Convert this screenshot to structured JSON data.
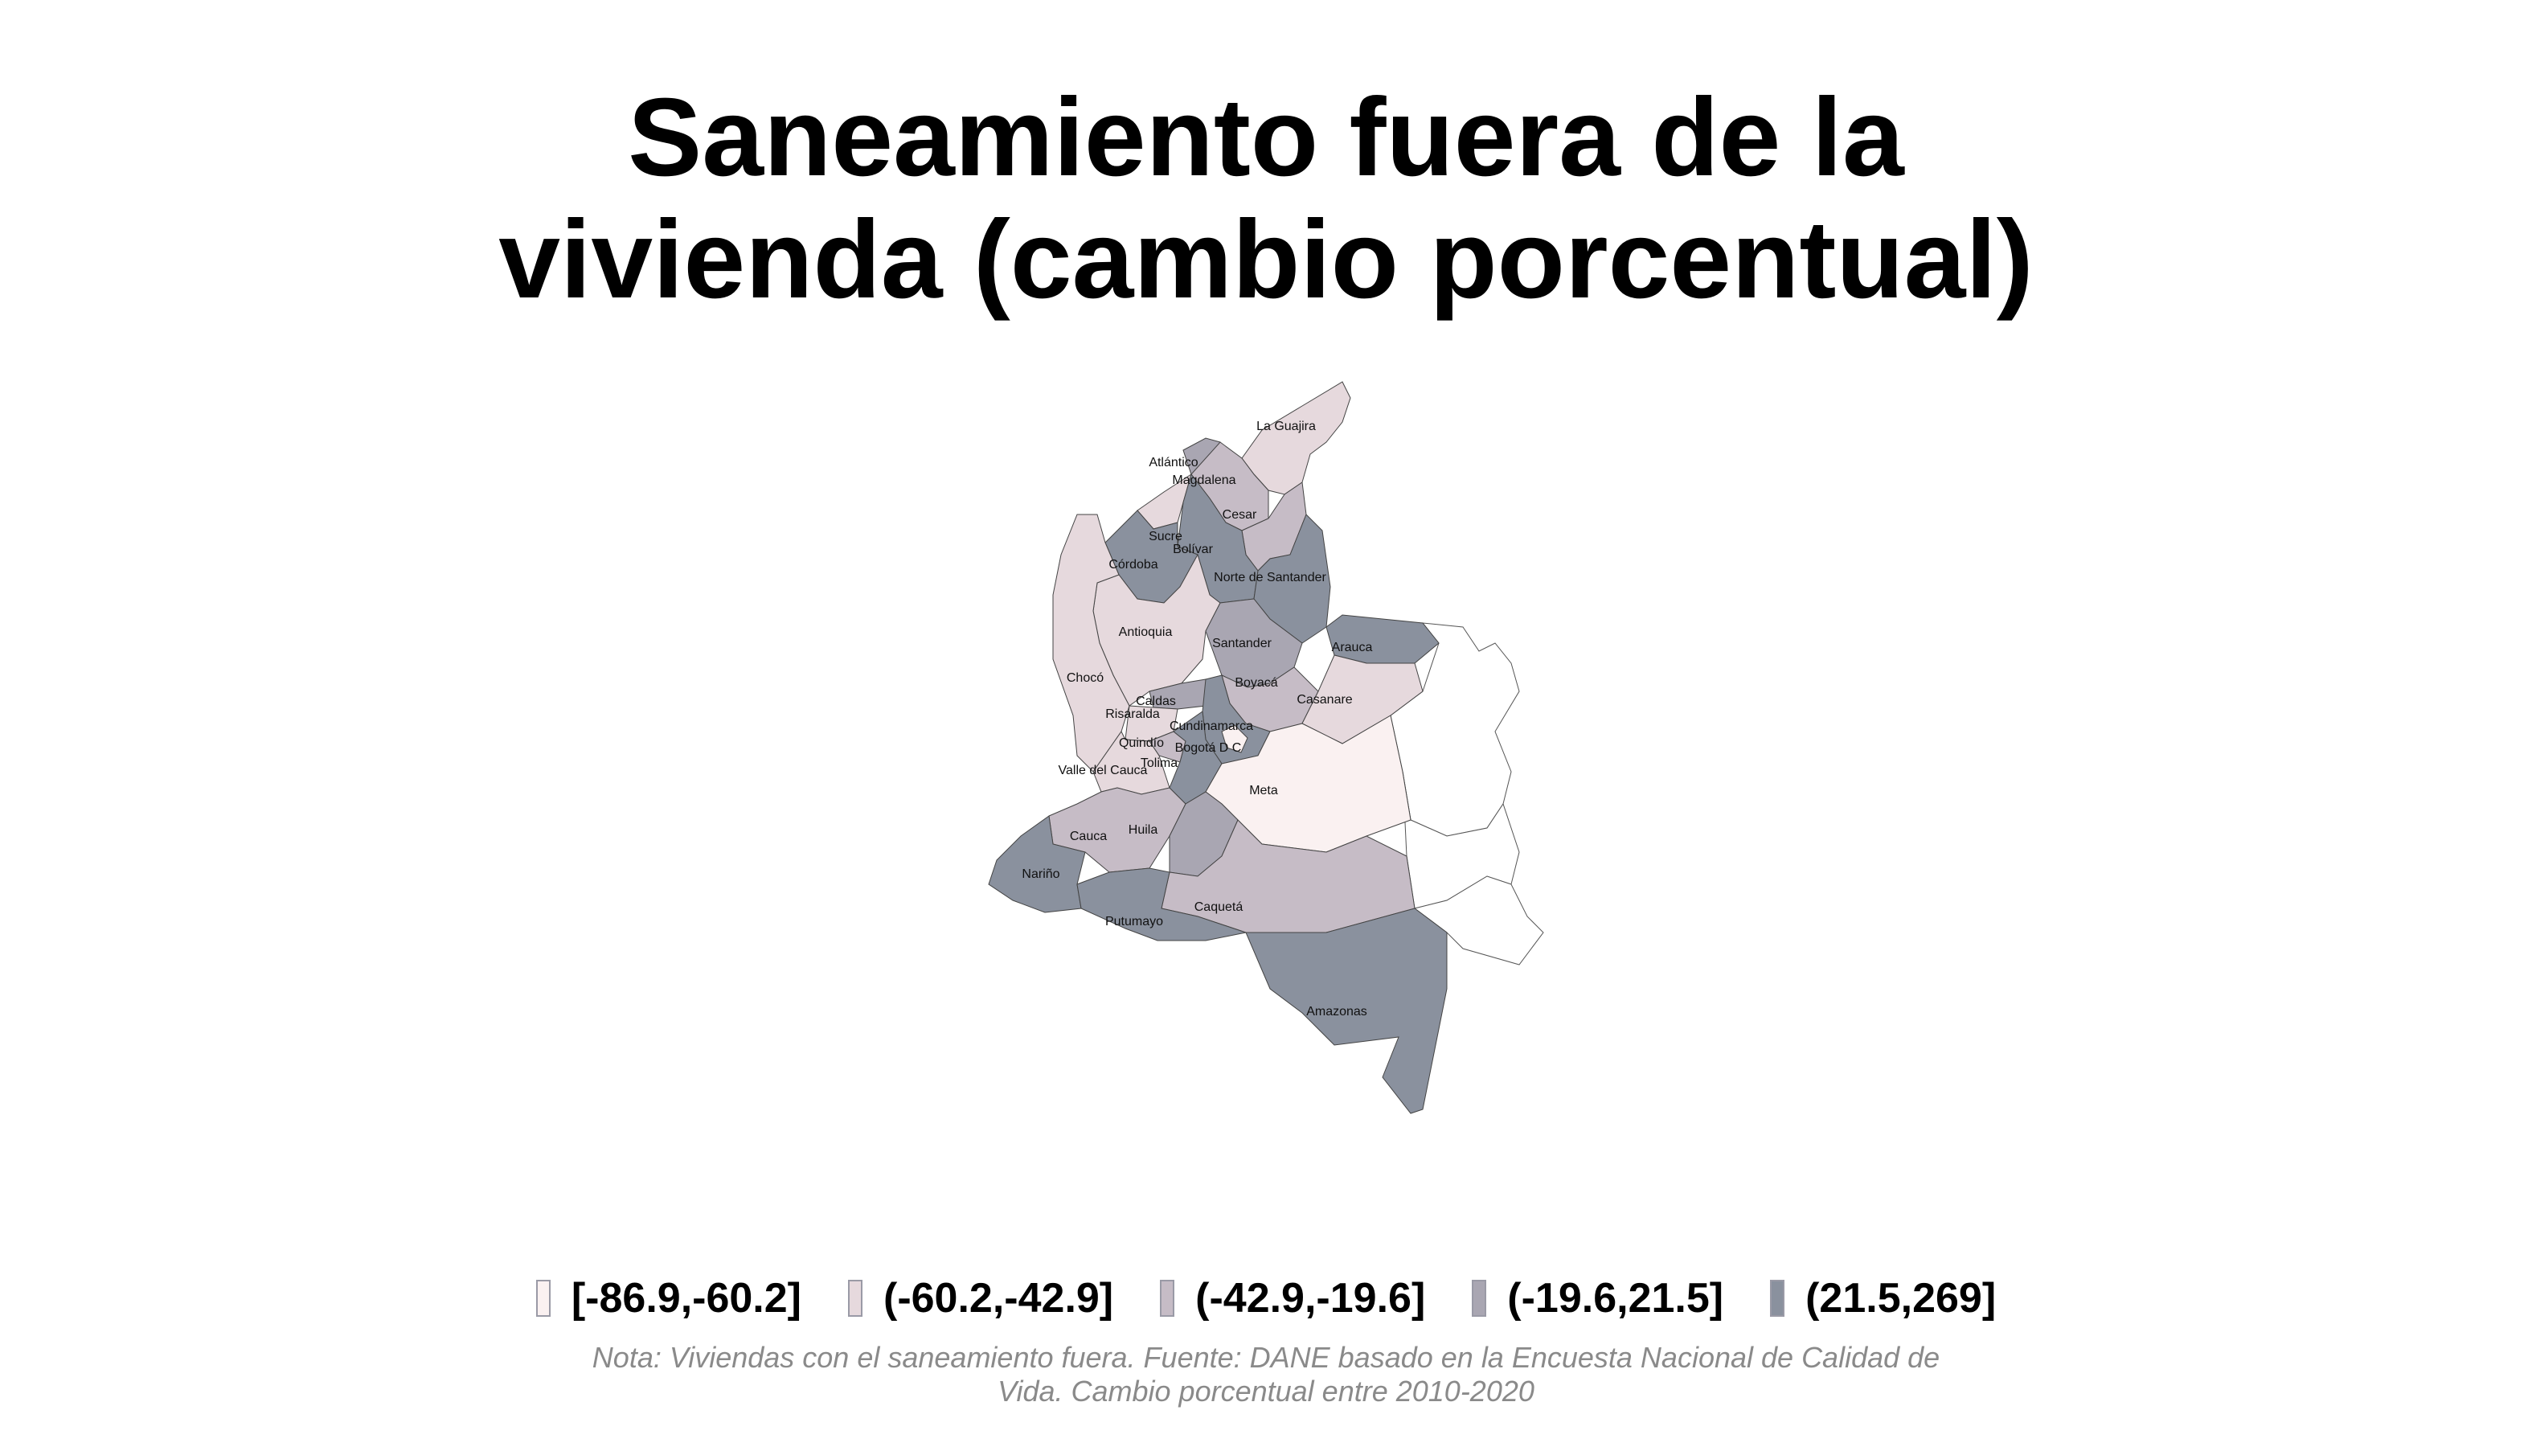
{
  "title": {
    "line1": "Saneamiento fuera de la",
    "line2": "vivienda (cambio porcentual)"
  },
  "legend": [
    {
      "label": "[-86.9,-60.2]",
      "color": "#faf1f1"
    },
    {
      "label": "(-60.2,-42.9]",
      "color": "#e6d9dd"
    },
    {
      "label": "(-42.9,-19.6]",
      "color": "#c6bcc6"
    },
    {
      "label": "(-19.6,21.5]",
      "color": "#a9a6b2"
    },
    {
      "label": "(21.5,269]",
      "color": "#8a919e"
    }
  ],
  "departments": [
    {
      "name": "La Guajira",
      "class": 1
    },
    {
      "name": "Atlántico",
      "class": 3
    },
    {
      "name": "Magdalena",
      "class": 2
    },
    {
      "name": "Cesar",
      "class": 2
    },
    {
      "name": "Sucre",
      "class": 1
    },
    {
      "name": "Bolívar",
      "class": 4
    },
    {
      "name": "Córdoba",
      "class": 4
    },
    {
      "name": "Norte de Santander",
      "class": 4
    },
    {
      "name": "Antioquia",
      "class": 1
    },
    {
      "name": "Santander",
      "class": 3
    },
    {
      "name": "Arauca",
      "class": 4
    },
    {
      "name": "Chocó",
      "class": 1
    },
    {
      "name": "Caldas",
      "class": 3
    },
    {
      "name": "Boyacá",
      "class": 2
    },
    {
      "name": "Casanare",
      "class": 1
    },
    {
      "name": "Risaralda",
      "class": 1
    },
    {
      "name": "Cundinamarca",
      "class": 4
    },
    {
      "name": "Quindío",
      "class": 2
    },
    {
      "name": "Bogotá D C",
      "class": 0
    },
    {
      "name": "Tolima",
      "class": 4
    },
    {
      "name": "Valle del Cauca",
      "class": 1
    },
    {
      "name": "Meta",
      "class": 0
    },
    {
      "name": "Cauca",
      "class": 2
    },
    {
      "name": "Huila",
      "class": 3
    },
    {
      "name": "Nariño",
      "class": 4
    },
    {
      "name": "Caquetá",
      "class": 2
    },
    {
      "name": "Putumayo",
      "class": 4
    },
    {
      "name": "Amazonas",
      "class": 4
    }
  ],
  "note": {
    "line1": "Nota: Viviendas con el saneamiento fuera. Fuente: DANE basado en la Encuesta Nacional de Calidad de",
    "line2": "Vida. Cambio porcentual entre 2010-2020"
  }
}
